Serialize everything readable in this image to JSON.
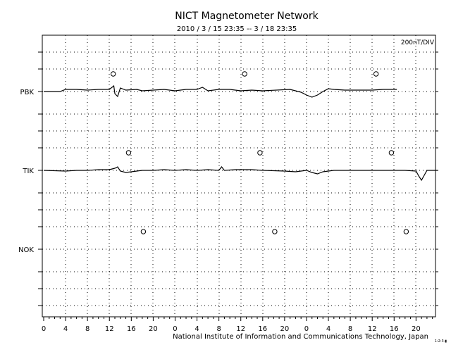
{
  "chart_data": {
    "type": "line",
    "title": "NICT Magnetometer Network",
    "subtitle": "2010 / 3 / 15  23:35 -- 3 / 18  23:35",
    "scale_label": "200nT/DIV",
    "credit": "National Institute of Information and Communications Technology, Japan",
    "corner_mark": "1:2:3·▮",
    "x_tick_labels": [
      "0",
      "4",
      "8",
      "12",
      "16",
      "20",
      "0",
      "4",
      "8",
      "12",
      "16",
      "20",
      "0",
      "4",
      "8",
      "12",
      "16",
      "20"
    ],
    "grid": true,
    "series": [
      {
        "name": "PBK",
        "markers": [
          12.7,
          36.7,
          60.7
        ],
        "points": [
          [
            0,
            0
          ],
          [
            3,
            0
          ],
          [
            4,
            -3
          ],
          [
            6,
            -3
          ],
          [
            8,
            -2
          ],
          [
            10,
            -3
          ],
          [
            12,
            -3
          ],
          [
            12.8,
            -8
          ],
          [
            13,
            3
          ],
          [
            13.5,
            7
          ],
          [
            14,
            -5
          ],
          [
            15,
            -2
          ],
          [
            17,
            -3
          ],
          [
            18,
            -1
          ],
          [
            20,
            -2
          ],
          [
            22,
            -3
          ],
          [
            24,
            -1
          ],
          [
            26,
            -3
          ],
          [
            28,
            -3
          ],
          [
            29,
            -6
          ],
          [
            30,
            -1
          ],
          [
            32,
            -3
          ],
          [
            34,
            -3
          ],
          [
            36,
            -1
          ],
          [
            38,
            -2
          ],
          [
            40,
            -1
          ],
          [
            45,
            -3
          ],
          [
            47,
            1
          ],
          [
            48,
            5
          ],
          [
            49,
            8
          ],
          [
            50,
            5
          ],
          [
            51,
            0
          ],
          [
            52,
            -4
          ],
          [
            53,
            -3
          ],
          [
            55,
            -2
          ],
          [
            58,
            -2
          ],
          [
            60,
            -2
          ],
          [
            62,
            -3
          ],
          [
            64.5,
            -3
          ]
        ]
      },
      {
        "name": "TIK",
        "markers": [
          15.5,
          39.5,
          63.5
        ],
        "points": [
          [
            0,
            0
          ],
          [
            4,
            1
          ],
          [
            6,
            0
          ],
          [
            8,
            0
          ],
          [
            10,
            -1
          ],
          [
            12,
            -1
          ],
          [
            13,
            -3
          ],
          [
            13.5,
            -5
          ],
          [
            14,
            1
          ],
          [
            15,
            3
          ],
          [
            16,
            2
          ],
          [
            18,
            0
          ],
          [
            20,
            0
          ],
          [
            22,
            -1
          ],
          [
            24,
            0
          ],
          [
            26,
            -1
          ],
          [
            28,
            0
          ],
          [
            30,
            -1
          ],
          [
            32,
            0
          ],
          [
            32.5,
            -5
          ],
          [
            33,
            0
          ],
          [
            35,
            -1
          ],
          [
            38,
            -1
          ],
          [
            40,
            0
          ],
          [
            44,
            1
          ],
          [
            46,
            2
          ],
          [
            48,
            0
          ],
          [
            49,
            3
          ],
          [
            50,
            5
          ],
          [
            51,
            2
          ],
          [
            53,
            0
          ],
          [
            56,
            0
          ],
          [
            60,
            0
          ],
          [
            62,
            0
          ],
          [
            66,
            0
          ],
          [
            68,
            1
          ],
          [
            68.5,
            8
          ],
          [
            69,
            14
          ],
          [
            69.5,
            7
          ],
          [
            70,
            0
          ],
          [
            72,
            0
          ]
        ]
      },
      {
        "name": "NOK",
        "markers": [
          18.2,
          42.2,
          66.2
        ],
        "points": []
      }
    ]
  }
}
